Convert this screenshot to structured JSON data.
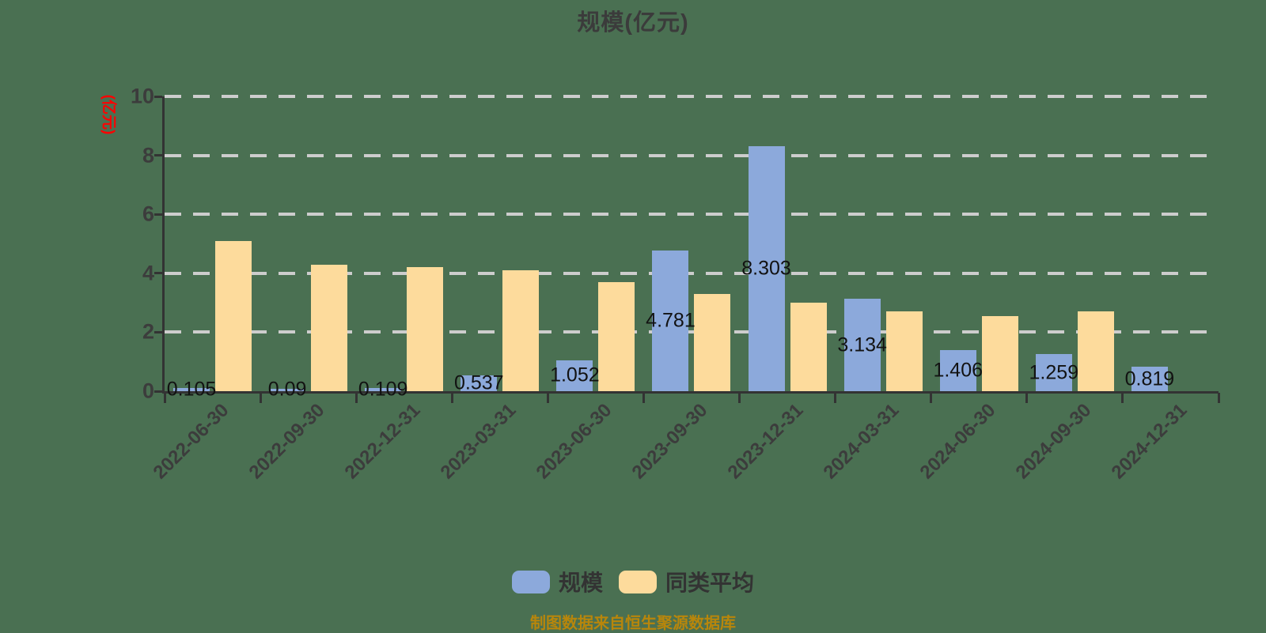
{
  "chart_data": {
    "type": "bar",
    "title": "规模(亿元)",
    "y_axis_name": "(亿元)",
    "categories": [
      "2022-06-30",
      "2022-09-30",
      "2022-12-31",
      "2023-03-31",
      "2023-06-30",
      "2023-09-30",
      "2023-12-31",
      "2024-03-31",
      "2024-06-30",
      "2024-09-30",
      "2024-12-31"
    ],
    "series": [
      {
        "name": "规模",
        "color": "#8CA9DB",
        "values": [
          0.105,
          0.09,
          0.109,
          0.537,
          1.052,
          4.781,
          8.303,
          3.134,
          1.406,
          1.259,
          0.819
        ],
        "labels": [
          "0.105",
          "0.09",
          "0.109",
          "0.537",
          "1.052",
          "4.781",
          "8.303",
          "3.134",
          "1.406",
          "1.259",
          "0.819"
        ]
      },
      {
        "name": "同类平均",
        "color": "#FDDB9C",
        "values": [
          5.1,
          4.3,
          4.2,
          4.1,
          3.7,
          3.3,
          3.0,
          2.7,
          2.55,
          2.7,
          null
        ],
        "labels": []
      }
    ],
    "ylim": [
      0,
      10
    ],
    "y_ticks": [
      0,
      2,
      4,
      6,
      8,
      10
    ],
    "grid": true,
    "legend_position": "bottom",
    "x_label_rotation_deg": -45
  },
  "footer": {
    "source_note": "制图数据来自恒生聚源数据库"
  },
  "colors": {
    "background": "#4A7052",
    "axis": "#333333",
    "gridline": "#CDCDCD",
    "bar_value_label": "#121212",
    "axis_name": "#FF0000",
    "source_note": "#B8860B",
    "series_scale": "#8CA9DB",
    "series_peer_average": "#FDDB9C"
  }
}
